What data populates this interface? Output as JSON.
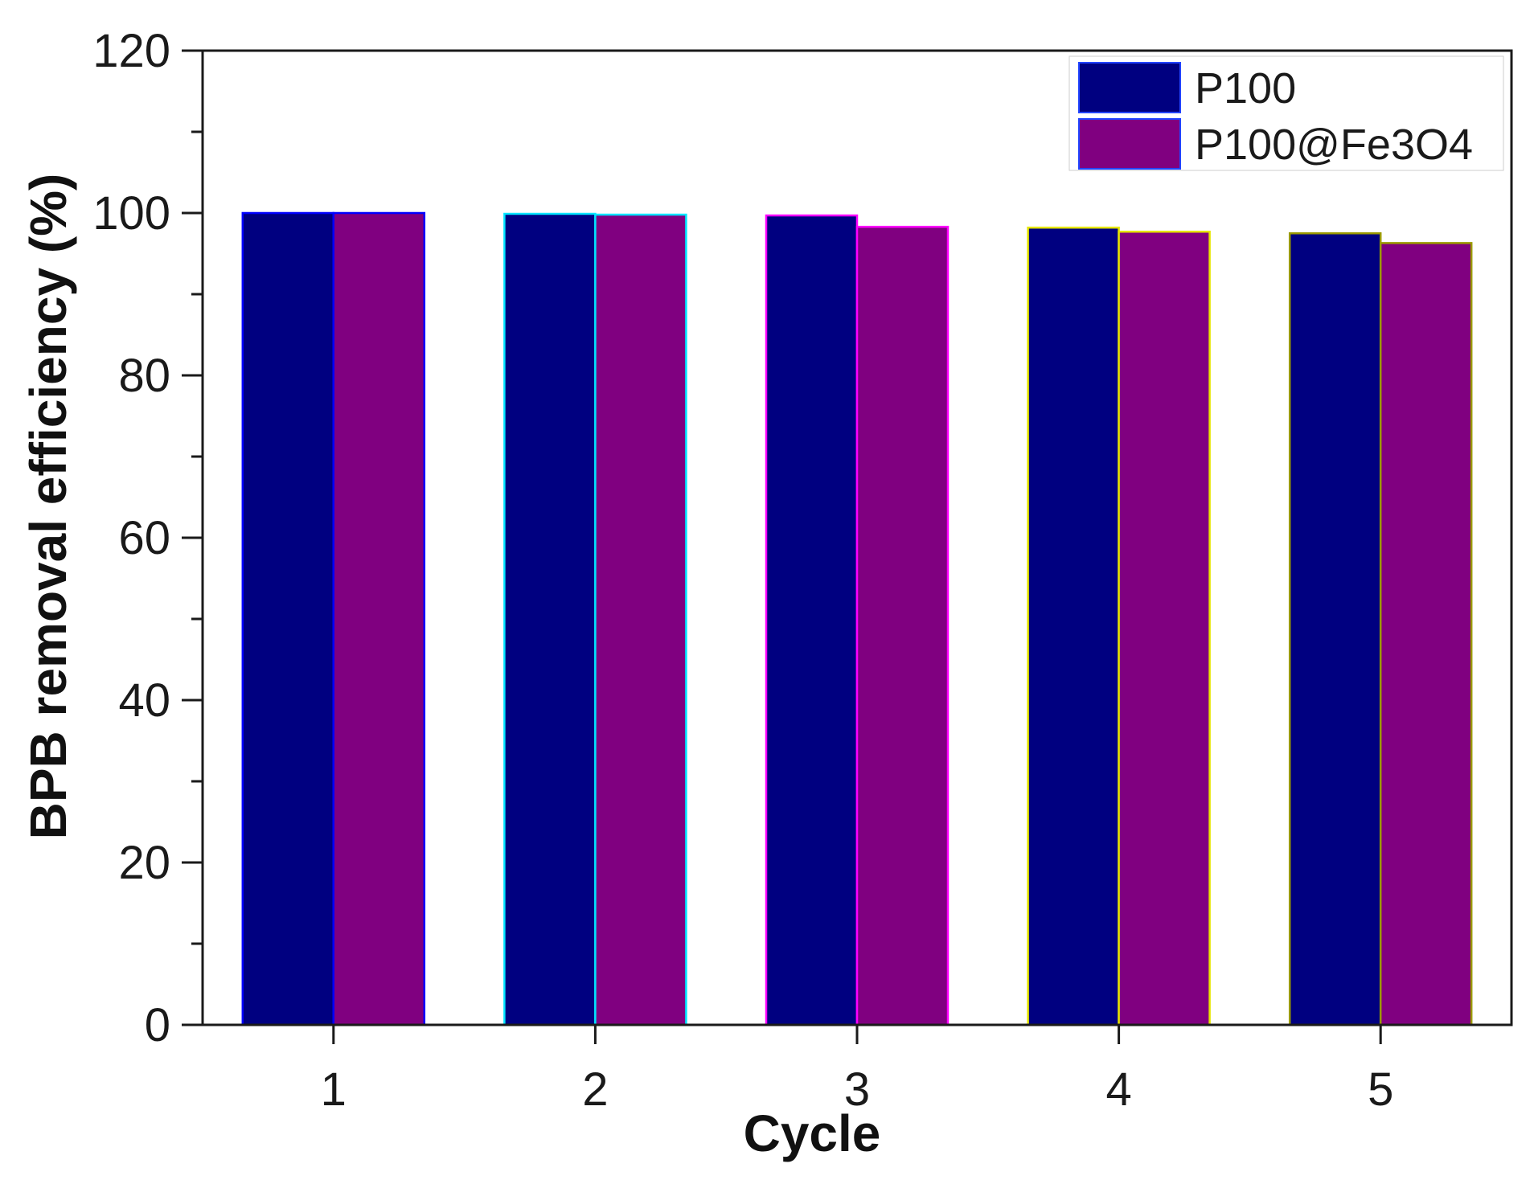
{
  "chart_data": {
    "type": "bar",
    "title": "",
    "xlabel": "Cycle",
    "ylabel": "BPB removal efficiency (%)",
    "categories": [
      "1",
      "2",
      "3",
      "4",
      "5"
    ],
    "ylim": [
      0,
      120
    ],
    "yticks": [
      "0",
      "20",
      "40",
      "60",
      "80",
      "100",
      "120"
    ],
    "grid": false,
    "legend_position": "top-right",
    "series": [
      {
        "name": "P100",
        "color": "#000080",
        "values": [
          100.0,
          99.9,
          99.7,
          98.2,
          97.5
        ]
      },
      {
        "name": "P100@Fe3O4",
        "color": "#800080",
        "values": [
          100.0,
          99.8,
          98.3,
          97.7,
          96.3
        ]
      }
    ],
    "bar_edge_colors": [
      "#0000ff",
      "#00e5ff",
      "#ff00ff",
      "#e6e600",
      "#9a9a00"
    ]
  }
}
